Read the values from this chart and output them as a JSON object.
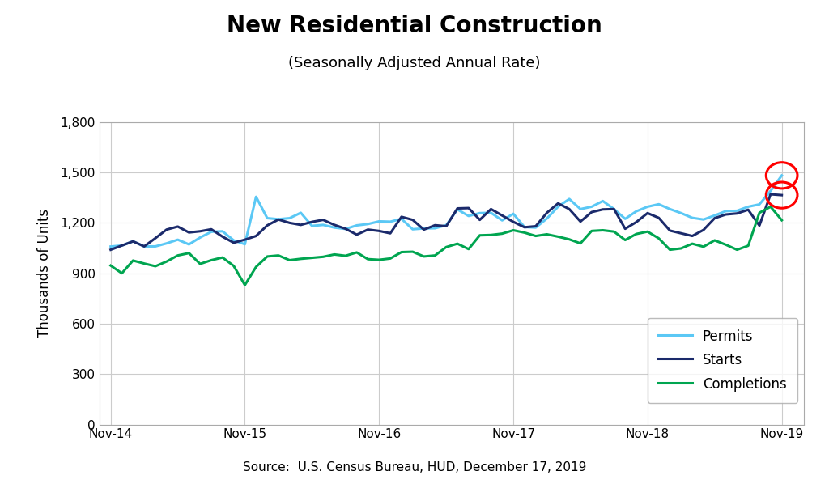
{
  "title": "New Residential Construction",
  "subtitle": "(Seasonally Adjusted Annual Rate)",
  "ylabel": "Thousands of Units",
  "source": "Source:  U.S. Census Bureau, HUD, December 17, 2019",
  "yticks": [
    0,
    300,
    600,
    900,
    1200,
    1500,
    1800
  ],
  "xtick_labels": [
    "Nov-14",
    "Nov-15",
    "Nov-16",
    "Nov-17",
    "Nov-18",
    "Nov-19"
  ],
  "background_color": "#ffffff",
  "permits_color": "#5BC8F5",
  "starts_color": "#1B2A6B",
  "completions_color": "#00A550",
  "circle_color": "#FF0000",
  "permits": [
    1059,
    1065,
    1090,
    1060,
    1060,
    1078,
    1100,
    1072,
    1113,
    1147,
    1150,
    1096,
    1073,
    1355,
    1228,
    1222,
    1228,
    1260,
    1182,
    1188,
    1172,
    1164,
    1185,
    1193,
    1209,
    1207,
    1224,
    1162,
    1167,
    1168,
    1186,
    1280,
    1241,
    1258,
    1260,
    1215,
    1254,
    1175,
    1172,
    1226,
    1296,
    1342,
    1282,
    1296,
    1330,
    1282,
    1224,
    1269,
    1296,
    1311,
    1282,
    1258,
    1230,
    1220,
    1244,
    1270,
    1272,
    1296,
    1310,
    1390,
    1482
  ],
  "starts": [
    1040,
    1065,
    1090,
    1060,
    1109,
    1160,
    1178,
    1143,
    1150,
    1162,
    1118,
    1082,
    1100,
    1122,
    1185,
    1220,
    1200,
    1188,
    1206,
    1218,
    1188,
    1165,
    1130,
    1160,
    1152,
    1138,
    1236,
    1218,
    1160,
    1186,
    1180,
    1286,
    1288,
    1218,
    1282,
    1244,
    1206,
    1174,
    1180,
    1260,
    1316,
    1282,
    1208,
    1264,
    1280,
    1282,
    1165,
    1205,
    1258,
    1230,
    1154,
    1138,
    1122,
    1158,
    1228,
    1250,
    1256,
    1278,
    1184,
    1370,
    1365
  ],
  "completions": [
    946,
    900,
    976,
    958,
    942,
    970,
    1006,
    1020,
    956,
    978,
    994,
    944,
    830,
    938,
    1000,
    1006,
    978,
    986,
    992,
    998,
    1012,
    1004,
    1024,
    984,
    980,
    988,
    1026,
    1028,
    1000,
    1006,
    1056,
    1076,
    1044,
    1126,
    1128,
    1136,
    1156,
    1142,
    1122,
    1132,
    1118,
    1102,
    1078,
    1152,
    1156,
    1148,
    1098,
    1134,
    1148,
    1108,
    1040,
    1048,
    1076,
    1058,
    1096,
    1070,
    1040,
    1064,
    1260,
    1296,
    1216
  ]
}
